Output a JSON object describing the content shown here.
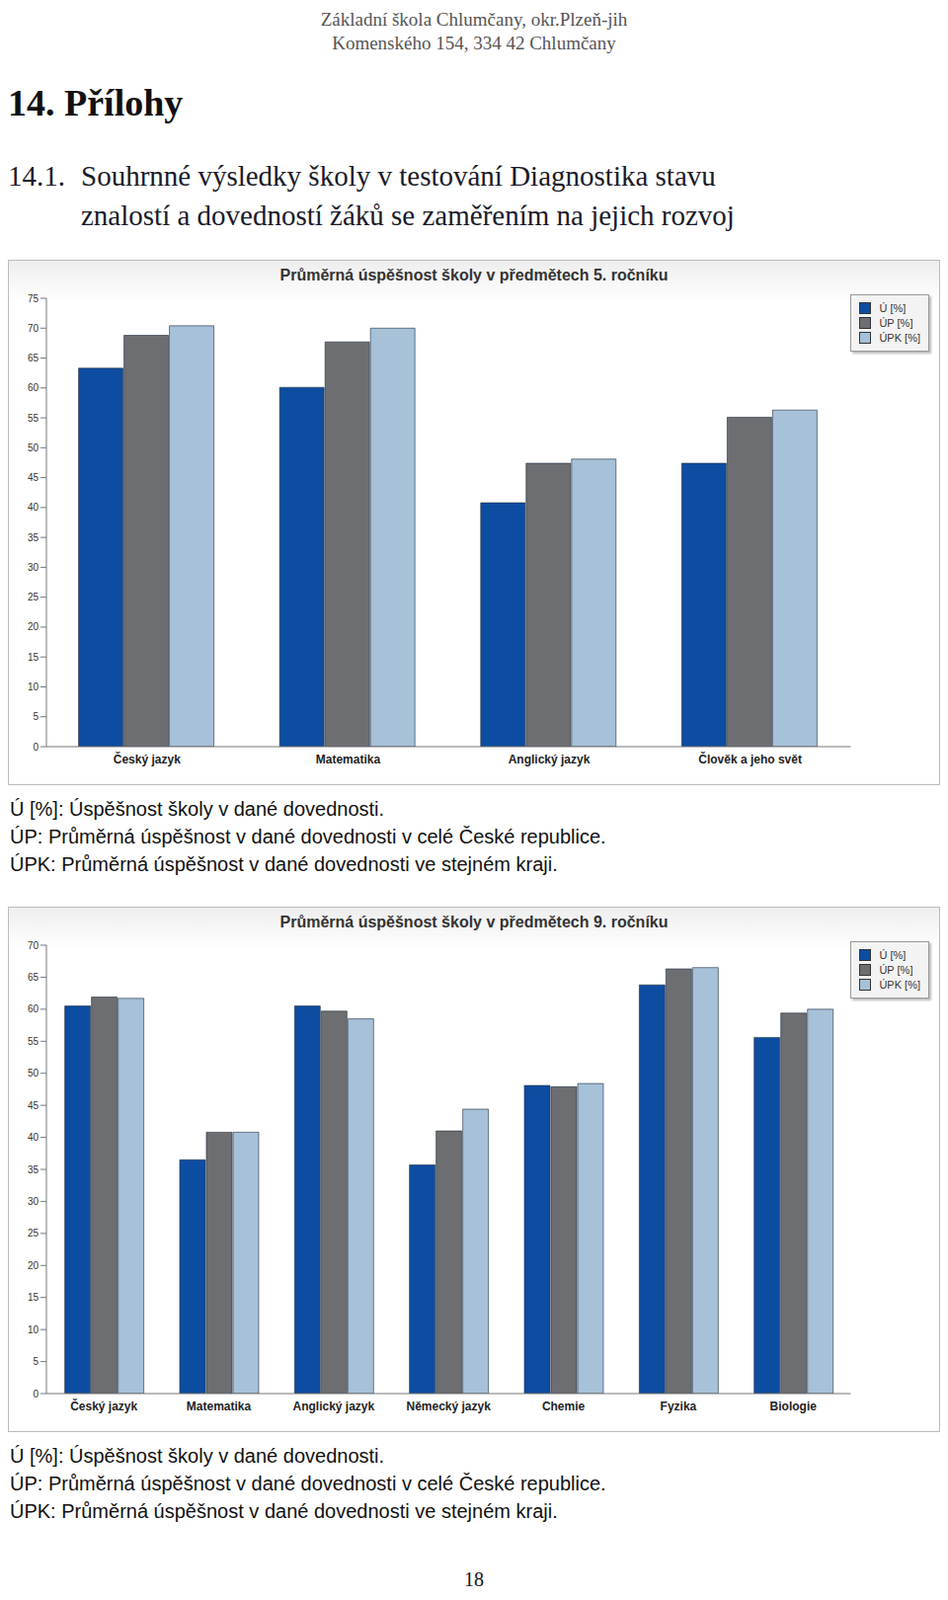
{
  "header": {
    "school": "Základní škola Chlumčany, okr.Plzeň-jih",
    "address": "Komenského 154, 334 42 Chlumčany"
  },
  "section": "14. Přílohy",
  "subsection": {
    "number": "14.1.",
    "lines": [
      "Souhrnné výsledky školy v testování Diagnostika stavu",
      "znalostí a dovedností žáků se zaměřením na jejich rozvoj"
    ]
  },
  "chart_data": [
    {
      "type": "bar",
      "title": "Průměrná úspěšnost školy v předmětech 5. ročníku",
      "categories": [
        "Český jazyk",
        "Matematika",
        "Anglický jazyk",
        "Člověk a jeho svět"
      ],
      "series": [
        {
          "name": "Ú [%]",
          "color": "#0d4da1",
          "values": [
            63.3,
            60.1,
            40.8,
            47.4
          ]
        },
        {
          "name": "ÚP [%]",
          "color": "#6d6e72",
          "values": [
            68.8,
            67.7,
            47.4,
            55.1
          ]
        },
        {
          "name": "ÚPK [%]",
          "color": "#a6c1d8",
          "values": [
            70.4,
            70,
            48.1,
            56.3
          ]
        }
      ],
      "ylim": [
        0,
        75
      ],
      "yticks": [
        0,
        5,
        10,
        15,
        20,
        25,
        30,
        35,
        40,
        45,
        50,
        55,
        60,
        65,
        70,
        75
      ],
      "grid": false,
      "legend": "upper right",
      "annotations": [
        "Ú [%]: Úspěšnost školy v dané dovednosti.",
        "ÚP: Průměrná úspěšnost v dané dovednosti v celé České republice.",
        "ÚPK: Průměrná úspěšnost v dané dovednosti ve stejném kraji."
      ]
    },
    {
      "type": "bar",
      "title": "Průměrná úspěšnost školy v předmětech 9. ročníku",
      "categories": [
        "Český jazyk",
        "Matematika",
        "Anglický jazyk",
        "Německý jazyk",
        "Chemie",
        "Fyzika",
        "Biologie"
      ],
      "series": [
        {
          "name": "Ú [%]",
          "color": "#0d4da1",
          "values": [
            60.5,
            36.5,
            60.5,
            35.7,
            48.1,
            63.8,
            55.6
          ]
        },
        {
          "name": "ÚP [%]",
          "color": "#6d6e72",
          "values": [
            61.9,
            40.8,
            59.7,
            41,
            47.9,
            66.3,
            59.4
          ]
        },
        {
          "name": "ÚPK [%]",
          "color": "#a6c1d8",
          "values": [
            61.7,
            40.8,
            58.5,
            44.4,
            48.4,
            66.5,
            60
          ]
        }
      ],
      "ylim": [
        0,
        70
      ],
      "yticks": [
        0,
        5,
        10,
        15,
        20,
        25,
        30,
        35,
        40,
        45,
        50,
        55,
        60,
        65,
        70
      ],
      "grid": false,
      "legend": "upper right",
      "annotations": [
        "Ú [%]: Úspěšnost školy v dané dovednosti.",
        "ÚP: Průměrná úspěšnost v dané dovednosti v celé České republice.",
        "ÚPK: Průměrná úspěšnost v dané dovednosti ve stejném kraji."
      ]
    }
  ],
  "page_number": 18
}
